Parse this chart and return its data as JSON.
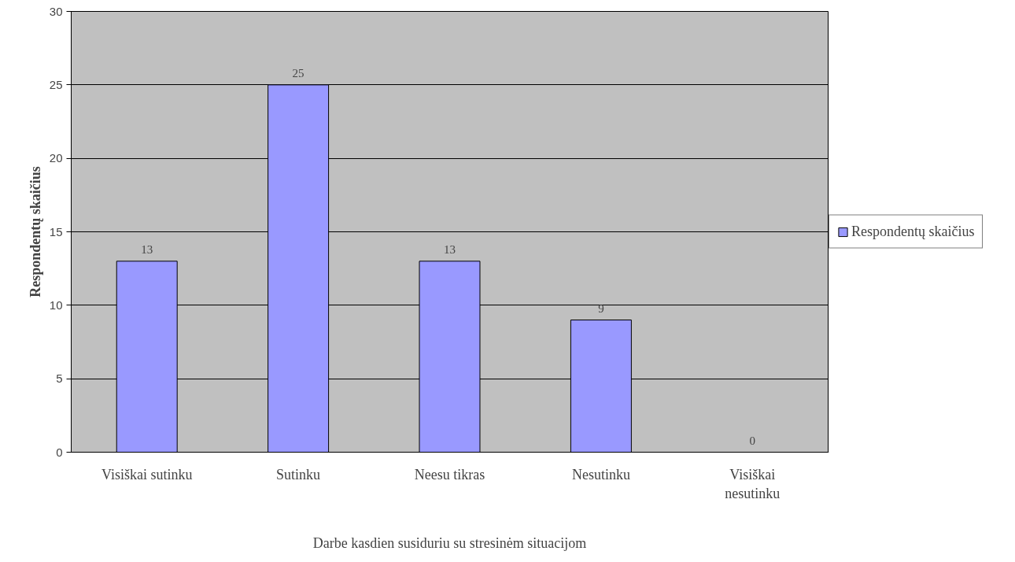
{
  "chart_data": {
    "type": "bar",
    "xlabel": "Darbe kasdien susiduriu su stresinėm situacijom",
    "ylabel": "Respondentų skaičius",
    "categories": [
      "Visiškai sutinku",
      "Sutinku",
      "Neesu tikras",
      "Nesutinku",
      "Visiškai nesutinku"
    ],
    "series": [
      {
        "name": "Respondentų skaičius",
        "color": "#9999ff",
        "values": [
          13,
          25,
          13,
          9,
          0
        ]
      }
    ],
    "ylim": [
      0,
      30
    ],
    "yticks": [
      0,
      5,
      10,
      15,
      20,
      25,
      30
    ],
    "grid": "y",
    "legend": "right",
    "data_labels": true
  }
}
